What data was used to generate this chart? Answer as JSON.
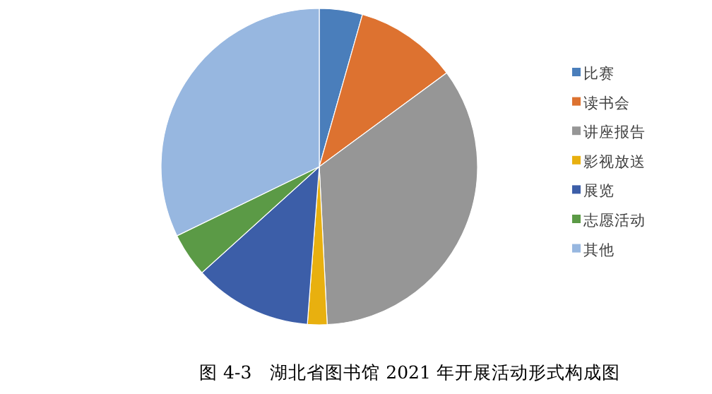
{
  "chart_data": {
    "type": "pie",
    "title": "图 4-3　湖北省图书馆 2021 年开展活动形式构成图",
    "legend": "right",
    "categories": [
      "比赛",
      "读书会",
      "讲座报告",
      "影视放送",
      "展览",
      "志愿活动",
      "其他"
    ],
    "values": [
      4.4,
      10.5,
      34.3,
      2.0,
      12.1,
      4.5,
      32.2
    ],
    "colors": [
      "#4a7ebb",
      "#dd7230",
      "#969696",
      "#e8b00f",
      "#3c5ea8",
      "#5b9a46",
      "#97b7e0"
    ]
  }
}
